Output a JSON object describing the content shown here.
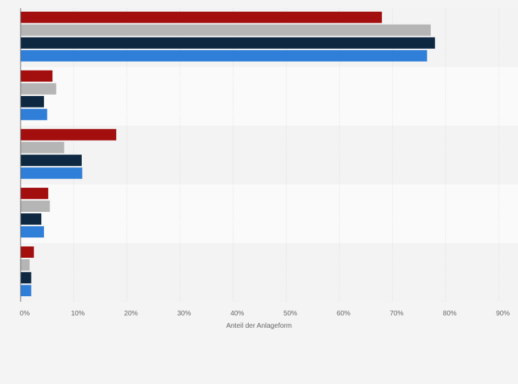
{
  "chart_data": {
    "type": "bar",
    "orientation": "horizontal",
    "xlabel": "Anteil der Anlageform",
    "xlim": [
      0,
      90
    ],
    "xticks": [
      0,
      10,
      20,
      30,
      40,
      50,
      60,
      70,
      80,
      90
    ],
    "xtick_labels": [
      "0%",
      "10%",
      "20%",
      "30%",
      "40%",
      "50%",
      "60%",
      "70%",
      "80%",
      "90%"
    ],
    "grid": true,
    "legend": "none",
    "category_count": 5,
    "series": [
      {
        "color": "#a30e0e",
        "values": [
          68,
          6,
          18,
          5.2,
          2.5
        ]
      },
      {
        "color": "#b5b5b5",
        "values": [
          77.2,
          6.7,
          8.2,
          5.5,
          1.7
        ]
      },
      {
        "color": "#0e2841",
        "values": [
          78,
          4.4,
          11.5,
          3.9,
          2
        ]
      },
      {
        "color": "#2f7ed8",
        "values": [
          76.5,
          5,
          11.6,
          4.4,
          2
        ]
      }
    ]
  }
}
